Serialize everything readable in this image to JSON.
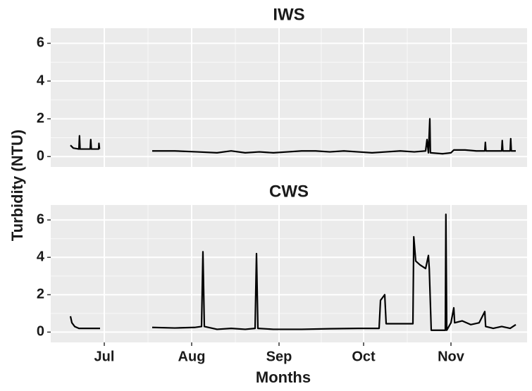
{
  "chart_data": [
    {
      "type": "line",
      "title": "IWS",
      "ylabel": "Turbidity (NTU)",
      "color": "#000000",
      "grid": true,
      "xlim": [
        11,
        180
      ],
      "ylim": [
        -0.55,
        6.8
      ],
      "yticks": [
        0,
        2,
        4,
        6
      ],
      "x": [
        18,
        19,
        21,
        21.2,
        21.4,
        24,
        25,
        25.2,
        25.4,
        28,
        28.1,
        28.3,
        37,
        47,
        55,
        63,
        70,
        75,
        80,
        85,
        90,
        95,
        100,
        105,
        110,
        115,
        120,
        125,
        130,
        135,
        140,
        144,
        144.5,
        145,
        145.5,
        145.7,
        150,
        153,
        154,
        158,
        162,
        165,
        165.2,
        165.4,
        168,
        171,
        171.2,
        171.4,
        174,
        174.2,
        174.4,
        176
      ],
      "values": [
        0.6,
        0.45,
        0.4,
        1.1,
        0.4,
        0.4,
        0.4,
        0.9,
        0.4,
        0.4,
        0.7,
        0.4,
        null,
        0.3,
        0.3,
        0.25,
        0.2,
        0.3,
        0.2,
        0.25,
        0.2,
        0.25,
        0.3,
        0.3,
        0.25,
        0.3,
        0.25,
        0.2,
        0.25,
        0.3,
        0.25,
        0.3,
        0.9,
        0.2,
        2.0,
        0.2,
        0.15,
        0.2,
        0.35,
        0.35,
        0.3,
        0.3,
        0.75,
        0.3,
        0.3,
        0.3,
        0.85,
        0.3,
        0.3,
        0.95,
        0.3,
        0.3
      ]
    },
    {
      "type": "line",
      "title": "CWS",
      "xlabel": "Months",
      "color": "#000000",
      "grid": true,
      "xlim": [
        11,
        180
      ],
      "ylim": [
        -0.55,
        6.8
      ],
      "yticks": [
        0,
        2,
        4,
        6
      ],
      "xticks": [
        {
          "value": 30,
          "label": "Jul"
        },
        {
          "value": 61,
          "label": "Aug"
        },
        {
          "value": 92,
          "label": "Sep"
        },
        {
          "value": 122,
          "label": "Oct"
        },
        {
          "value": 153,
          "label": "Nov"
        }
      ],
      "x": [
        18,
        18.5,
        19.5,
        21,
        24,
        28.5,
        37,
        47,
        55,
        62,
        64.5,
        65,
        65.5,
        70,
        75,
        80,
        83.5,
        84,
        84.5,
        90,
        100,
        110,
        120,
        127.5,
        128,
        129,
        129.5,
        130,
        135,
        139.5,
        139.8,
        140.5,
        142,
        144,
        145,
        145.3,
        146,
        148,
        151,
        151.2,
        151.5,
        153,
        154,
        154.3,
        157,
        160,
        163,
        165,
        165.3,
        168,
        171,
        174,
        176
      ],
      "values": [
        0.85,
        0.5,
        0.3,
        0.2,
        0.2,
        0.2,
        null,
        0.25,
        0.22,
        0.25,
        0.3,
        4.3,
        0.3,
        0.15,
        0.2,
        0.15,
        0.2,
        4.2,
        0.2,
        0.15,
        0.15,
        0.18,
        0.2,
        0.2,
        1.7,
        1.9,
        2.0,
        0.45,
        0.45,
        0.45,
        5.1,
        3.8,
        3.6,
        3.4,
        4.1,
        3.4,
        0.1,
        0.1,
        0.1,
        6.3,
        0.1,
        0.5,
        1.3,
        0.5,
        0.6,
        0.4,
        0.5,
        1.1,
        0.3,
        0.2,
        0.3,
        0.2,
        0.4
      ]
    }
  ]
}
